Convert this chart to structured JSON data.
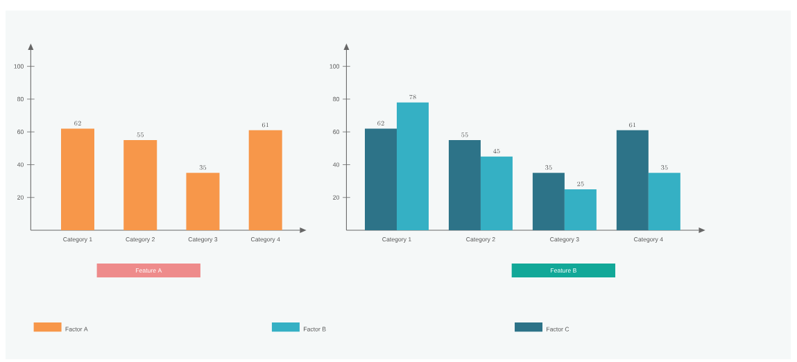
{
  "chart_data": [
    {
      "type": "bar",
      "title": "Feature A",
      "categories": [
        "Category 1",
        "Category 2",
        "Category 3",
        "Category 4"
      ],
      "series": [
        {
          "name": "Factor A",
          "color": "#f7974a",
          "values": [
            62,
            55,
            35,
            61
          ]
        }
      ],
      "ylim": [
        0,
        110
      ],
      "yticks": [
        20,
        40,
        60,
        80,
        100
      ],
      "data_labels": true,
      "legend": "bottom"
    },
    {
      "type": "bar",
      "title": "Feature B",
      "categories": [
        "Category 1",
        "Category 2",
        "Category 3",
        "Category 4"
      ],
      "series": [
        {
          "name": "Factor C",
          "color": "#2d7388",
          "values": [
            62,
            55,
            35,
            61
          ]
        },
        {
          "name": "Factor B",
          "color": "#35b0c4",
          "values": [
            78,
            45,
            25,
            35
          ]
        }
      ],
      "ylim": [
        0,
        110
      ],
      "yticks": [
        20,
        40,
        60,
        80,
        100
      ],
      "data_labels": true,
      "legend": "bottom"
    }
  ]
}
